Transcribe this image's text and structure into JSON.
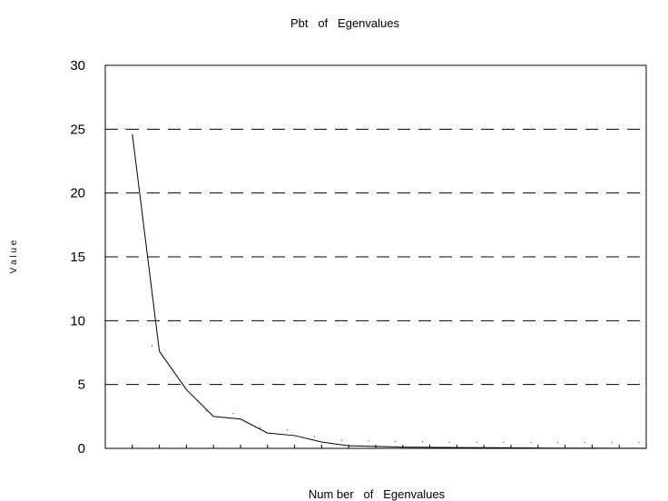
{
  "chart_data": {
    "type": "line",
    "title": "Pbt   of   Egenvalues",
    "xlabel": "Num ber   of   Egenvalues",
    "ylabel": "V a l u e",
    "ylim": [
      0,
      30
    ],
    "xlim": [
      0,
      20
    ],
    "yticks": [
      "0",
      "5",
      "10",
      "15",
      "20",
      "25",
      "30"
    ],
    "grid": "dashed horizontal lines",
    "series": [
      {
        "x": [
          1,
          2,
          3,
          4,
          5,
          6,
          7,
          8,
          9,
          10,
          11,
          12,
          13,
          14,
          15,
          16,
          17,
          18,
          19,
          20
        ],
        "values": [
          24.6,
          7.6,
          4.6,
          2.5,
          2.3,
          1.2,
          1.0,
          0.5,
          0.2,
          0.15,
          0.1,
          0.08,
          0.06,
          0.05,
          0.04,
          0.03,
          0.02,
          0.02,
          0.01,
          0.01
        ]
      }
    ]
  }
}
